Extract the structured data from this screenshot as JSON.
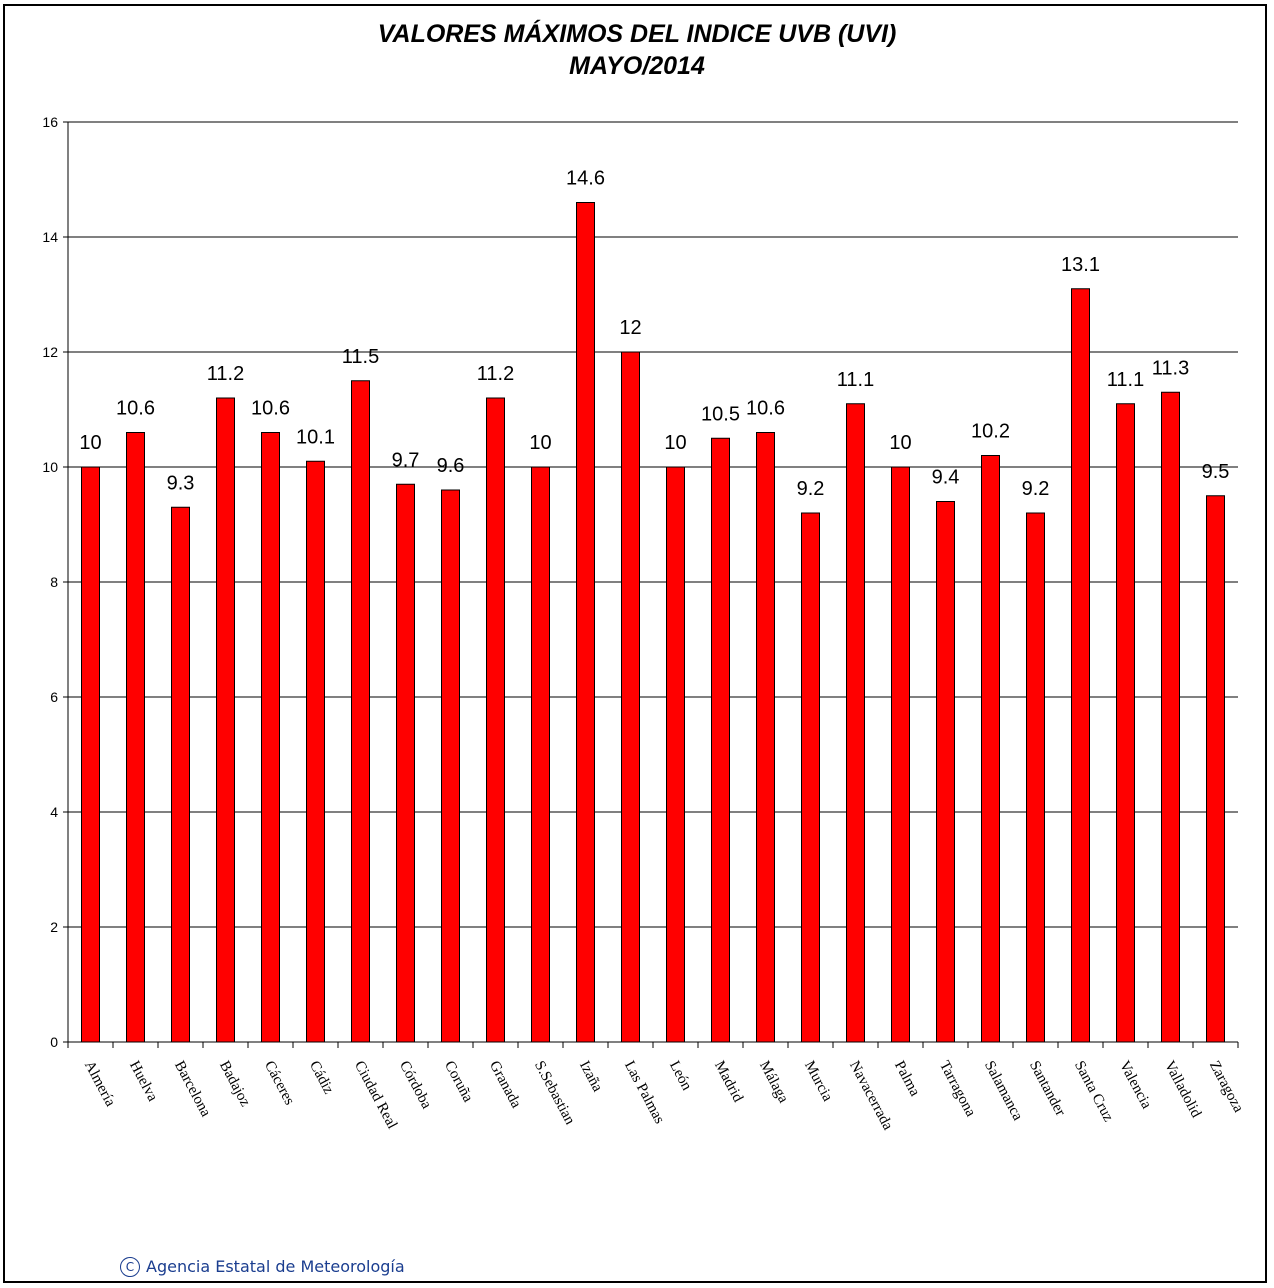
{
  "chart_data": {
    "type": "bar",
    "title": "VALORES MÁXIMOS DEL INDICE UVB (UVI)",
    "subtitle": "MAYO/2014",
    "xlabel": "",
    "ylabel": "",
    "ylim": [
      0,
      16
    ],
    "yticks": [
      "0",
      "2",
      "4",
      "6",
      "8",
      "10",
      "12",
      "14",
      "16"
    ],
    "grid": true,
    "bar_color": "#ff0000",
    "categories": [
      "Almería",
      "Huelva",
      "Barcelona",
      "Badajoz",
      "Cáceres",
      "Cádiz",
      "Ciudad Real",
      "Córdoba",
      "Coruña",
      "Granada",
      "S.Sebastian",
      "Izaña",
      "Las Palmas",
      "León",
      "Madrid",
      "Málaga",
      "Murcia",
      "Navacerrada",
      "Palma",
      "Tarragona",
      "Salamanca",
      "Santander",
      "Santa Cruz",
      "Valencia",
      "Valladolid",
      "Zaragoza"
    ],
    "values": [
      10,
      10.6,
      9.3,
      11.2,
      10.6,
      10.1,
      11.5,
      9.7,
      9.6,
      11.2,
      10,
      14.6,
      12,
      10,
      10.5,
      10.6,
      9.2,
      11.1,
      10,
      9.4,
      10.2,
      9.2,
      13.1,
      11.1,
      11.3,
      9.5
    ],
    "data_labels": [
      "10",
      "10.6",
      "9.3",
      "11.2",
      "10.6",
      "10.1",
      "11.5",
      "9.7",
      "9.6",
      "11.2",
      "10",
      "14.6",
      "12",
      "10",
      "10.5",
      "10.6",
      "9.2",
      "11.1",
      "10",
      "9.4",
      "10.2",
      "9.2",
      "13.1",
      "11.1",
      "11.3",
      "9.5"
    ]
  },
  "footer": {
    "credit_symbol": "C",
    "credit_text": "Agencia Estatal de Meteorología"
  }
}
